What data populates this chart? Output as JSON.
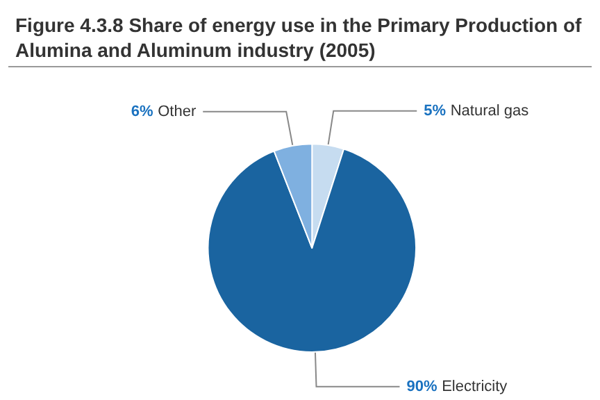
{
  "chart_data": {
    "type": "pie",
    "title": "Figure 4.3.8 Share of energy use in the Primary Production of Alumina and Aluminum industry (2005)",
    "categories": [
      "Natural gas",
      "Electricity",
      "Other"
    ],
    "values": [
      5,
      90,
      6
    ],
    "value_labels": [
      "5%",
      "90%",
      "6%"
    ],
    "colors": [
      "#c6dcf0",
      "#1a64a0",
      "#7fb0e0"
    ],
    "legend": false
  }
}
